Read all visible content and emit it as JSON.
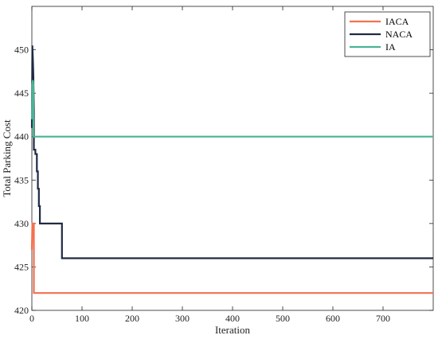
{
  "chart_data": {
    "type": "line",
    "title": "",
    "xlabel": "Iteration",
    "ylabel": "Total Parking Cost",
    "xlim": [
      0,
      800
    ],
    "ylim": [
      420,
      455
    ],
    "xticks": [
      0,
      100,
      200,
      300,
      400,
      500,
      600,
      700
    ],
    "yticks": [
      420,
      425,
      430,
      435,
      440,
      445,
      450
    ],
    "grid": false,
    "legend_position": "top-right",
    "series": [
      {
        "name": "IACA",
        "color": "#f4704f",
        "x": [
          0,
          1,
          2,
          3,
          4,
          4,
          800
        ],
        "y": [
          427,
          430,
          430,
          430,
          430,
          422,
          422
        ]
      },
      {
        "name": "NACA",
        "color": "#1f2a44",
        "x": [
          0,
          1,
          2,
          3,
          4,
          4,
          5,
          6,
          7,
          7,
          8,
          8,
          10,
          10,
          12,
          12,
          14,
          14,
          16,
          16,
          60,
          60,
          800
        ],
        "y": [
          441,
          450.5,
          449,
          447,
          443,
          438.5,
          438.5,
          438.5,
          438.5,
          438,
          438,
          438,
          438,
          436,
          436,
          434,
          434,
          432,
          432,
          430,
          430,
          426,
          426
        ]
      },
      {
        "name": "IA",
        "color": "#4bb394",
        "x": [
          0,
          1,
          2,
          3,
          3,
          800
        ],
        "y": [
          442,
          446,
          446.5,
          446,
          440,
          440
        ]
      }
    ]
  }
}
